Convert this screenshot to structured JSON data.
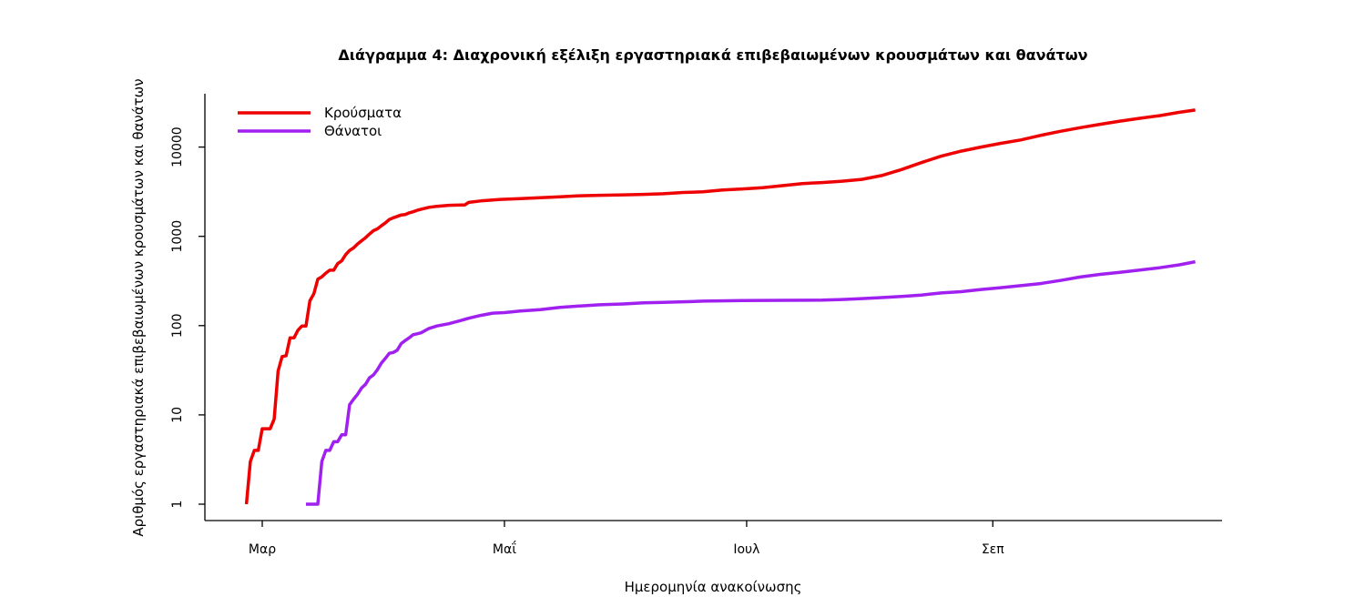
{
  "chart_data": {
    "type": "line",
    "title": "Διάγραμμα 4: Διαχρονική εξέλιξη εργαστηριακά επιβεβαιωμένων κρουσμάτων και θανάτων",
    "xlabel": "Ημερομηνία ανακοίνωσης",
    "ylabel": "Αριθμός εργαστηριακά επιβεβαιωμένων κρουσμάτων και θανάτων",
    "yscale": "log",
    "ylim": [
      1,
      30000
    ],
    "xlim": [
      "2020-02-24",
      "2020-10-27"
    ],
    "grid": false,
    "legend_position": "top-left",
    "x_ticks": [
      {
        "date": "2020-03-01",
        "label": "Μαρ"
      },
      {
        "date": "2020-05-01",
        "label": "Μαΐ"
      },
      {
        "date": "2020-07-01",
        "label": "Ιουλ"
      },
      {
        "date": "2020-09-01",
        "label": "Σεπ"
      }
    ],
    "y_ticks": [
      {
        "value": 1,
        "label": "1"
      },
      {
        "value": 10,
        "label": "10"
      },
      {
        "value": 100,
        "label": "100"
      },
      {
        "value": 1000,
        "label": "1000"
      },
      {
        "value": 10000,
        "label": "10000"
      }
    ],
    "series": [
      {
        "name": "Κρούσματα",
        "color": "#ee0000",
        "points": [
          [
            "2020-02-26",
            1
          ],
          [
            "2020-02-27",
            3
          ],
          [
            "2020-02-28",
            4
          ],
          [
            "2020-02-29",
            4
          ],
          [
            "2020-03-01",
            7
          ],
          [
            "2020-03-03",
            7
          ],
          [
            "2020-03-04",
            9
          ],
          [
            "2020-03-05",
            31
          ],
          [
            "2020-03-06",
            45
          ],
          [
            "2020-03-07",
            46
          ],
          [
            "2020-03-08",
            73
          ],
          [
            "2020-03-09",
            73
          ],
          [
            "2020-03-10",
            89
          ],
          [
            "2020-03-11",
            99
          ],
          [
            "2020-03-12",
            99
          ],
          [
            "2020-03-13",
            190
          ],
          [
            "2020-03-14",
            228
          ],
          [
            "2020-03-15",
            331
          ],
          [
            "2020-03-16",
            352
          ],
          [
            "2020-03-17",
            387
          ],
          [
            "2020-03-18",
            418
          ],
          [
            "2020-03-19",
            418
          ],
          [
            "2020-03-20",
            495
          ],
          [
            "2020-03-21",
            530
          ],
          [
            "2020-03-22",
            624
          ],
          [
            "2020-03-23",
            695
          ],
          [
            "2020-03-24",
            743
          ],
          [
            "2020-03-25",
            821
          ],
          [
            "2020-03-26",
            892
          ],
          [
            "2020-03-27",
            966
          ],
          [
            "2020-03-28",
            1061
          ],
          [
            "2020-03-29",
            1156
          ],
          [
            "2020-03-30",
            1212
          ],
          [
            "2020-03-31",
            1314
          ],
          [
            "2020-04-01",
            1415
          ],
          [
            "2020-04-02",
            1544
          ],
          [
            "2020-04-03",
            1613
          ],
          [
            "2020-04-04",
            1673
          ],
          [
            "2020-04-05",
            1735
          ],
          [
            "2020-04-06",
            1755
          ],
          [
            "2020-04-07",
            1832
          ],
          [
            "2020-04-08",
            1884
          ],
          [
            "2020-04-09",
            1955
          ],
          [
            "2020-04-10",
            2011
          ],
          [
            "2020-04-12",
            2114
          ],
          [
            "2020-04-14",
            2170
          ],
          [
            "2020-04-17",
            2224
          ],
          [
            "2020-04-20",
            2245
          ],
          [
            "2020-04-21",
            2245
          ],
          [
            "2020-04-22",
            2401
          ],
          [
            "2020-04-25",
            2490
          ],
          [
            "2020-04-30",
            2591
          ],
          [
            "2020-05-05",
            2642
          ],
          [
            "2020-05-10",
            2710
          ],
          [
            "2020-05-15",
            2770
          ],
          [
            "2020-05-20",
            2850
          ],
          [
            "2020-05-25",
            2880
          ],
          [
            "2020-05-31",
            2915
          ],
          [
            "2020-06-05",
            2950
          ],
          [
            "2020-06-10",
            3000
          ],
          [
            "2020-06-15",
            3100
          ],
          [
            "2020-06-20",
            3150
          ],
          [
            "2020-06-25",
            3300
          ],
          [
            "2020-06-30",
            3400
          ],
          [
            "2020-07-05",
            3500
          ],
          [
            "2020-07-10",
            3700
          ],
          [
            "2020-07-15",
            3900
          ],
          [
            "2020-07-20",
            4000
          ],
          [
            "2020-07-25",
            4150
          ],
          [
            "2020-07-30",
            4350
          ],
          [
            "2020-08-04",
            4800
          ],
          [
            "2020-08-09",
            5600
          ],
          [
            "2020-08-14",
            6700
          ],
          [
            "2020-08-19",
            7900
          ],
          [
            "2020-08-24",
            9000
          ],
          [
            "2020-08-29",
            10000
          ],
          [
            "2020-09-03",
            11000
          ],
          [
            "2020-09-08",
            12000
          ],
          [
            "2020-09-13",
            13500
          ],
          [
            "2020-09-18",
            15000
          ],
          [
            "2020-09-23",
            16500
          ],
          [
            "2020-09-28",
            18000
          ],
          [
            "2020-10-03",
            19500
          ],
          [
            "2020-10-08",
            21000
          ],
          [
            "2020-10-13",
            22500
          ],
          [
            "2020-10-18",
            24500
          ],
          [
            "2020-10-22",
            26000
          ]
        ]
      },
      {
        "name": "Θάνατοι",
        "color": "#a020f0",
        "points": [
          [
            "2020-03-12",
            1
          ],
          [
            "2020-03-15",
            1
          ],
          [
            "2020-03-16",
            3
          ],
          [
            "2020-03-17",
            4
          ],
          [
            "2020-03-18",
            4
          ],
          [
            "2020-03-19",
            5
          ],
          [
            "2020-03-20",
            5
          ],
          [
            "2020-03-21",
            6
          ],
          [
            "2020-03-22",
            6
          ],
          [
            "2020-03-23",
            13
          ],
          [
            "2020-03-24",
            15
          ],
          [
            "2020-03-25",
            17
          ],
          [
            "2020-03-26",
            20
          ],
          [
            "2020-03-27",
            22
          ],
          [
            "2020-03-28",
            26
          ],
          [
            "2020-03-29",
            28
          ],
          [
            "2020-03-30",
            32
          ],
          [
            "2020-03-31",
            38
          ],
          [
            "2020-04-01",
            43
          ],
          [
            "2020-04-02",
            49
          ],
          [
            "2020-04-03",
            50
          ],
          [
            "2020-04-04",
            53
          ],
          [
            "2020-04-05",
            63
          ],
          [
            "2020-04-06",
            68
          ],
          [
            "2020-04-07",
            73
          ],
          [
            "2020-04-08",
            79
          ],
          [
            "2020-04-09",
            81
          ],
          [
            "2020-04-10",
            83
          ],
          [
            "2020-04-12",
            93
          ],
          [
            "2020-04-14",
            99
          ],
          [
            "2020-04-17",
            105
          ],
          [
            "2020-04-20",
            114
          ],
          [
            "2020-04-22",
            121
          ],
          [
            "2020-04-25",
            130
          ],
          [
            "2020-04-28",
            138
          ],
          [
            "2020-05-01",
            140
          ],
          [
            "2020-05-05",
            146
          ],
          [
            "2020-05-10",
            151
          ],
          [
            "2020-05-15",
            160
          ],
          [
            "2020-05-20",
            166
          ],
          [
            "2020-05-25",
            171
          ],
          [
            "2020-05-31",
            175
          ],
          [
            "2020-06-05",
            180
          ],
          [
            "2020-06-10",
            182
          ],
          [
            "2020-06-20",
            188
          ],
          [
            "2020-06-30",
            191
          ],
          [
            "2020-07-10",
            192
          ],
          [
            "2020-07-20",
            193
          ],
          [
            "2020-07-25",
            196
          ],
          [
            "2020-07-30",
            201
          ],
          [
            "2020-08-04",
            206
          ],
          [
            "2020-08-09",
            212
          ],
          [
            "2020-08-14",
            220
          ],
          [
            "2020-08-19",
            232
          ],
          [
            "2020-08-24",
            240
          ],
          [
            "2020-08-29",
            254
          ],
          [
            "2020-09-03",
            266
          ],
          [
            "2020-09-08",
            280
          ],
          [
            "2020-09-13",
            296
          ],
          [
            "2020-09-18",
            320
          ],
          [
            "2020-09-23",
            350
          ],
          [
            "2020-09-28",
            375
          ],
          [
            "2020-10-03",
            395
          ],
          [
            "2020-10-08",
            420
          ],
          [
            "2020-10-13",
            445
          ],
          [
            "2020-10-18",
            480
          ],
          [
            "2020-10-22",
            520
          ]
        ]
      }
    ]
  }
}
